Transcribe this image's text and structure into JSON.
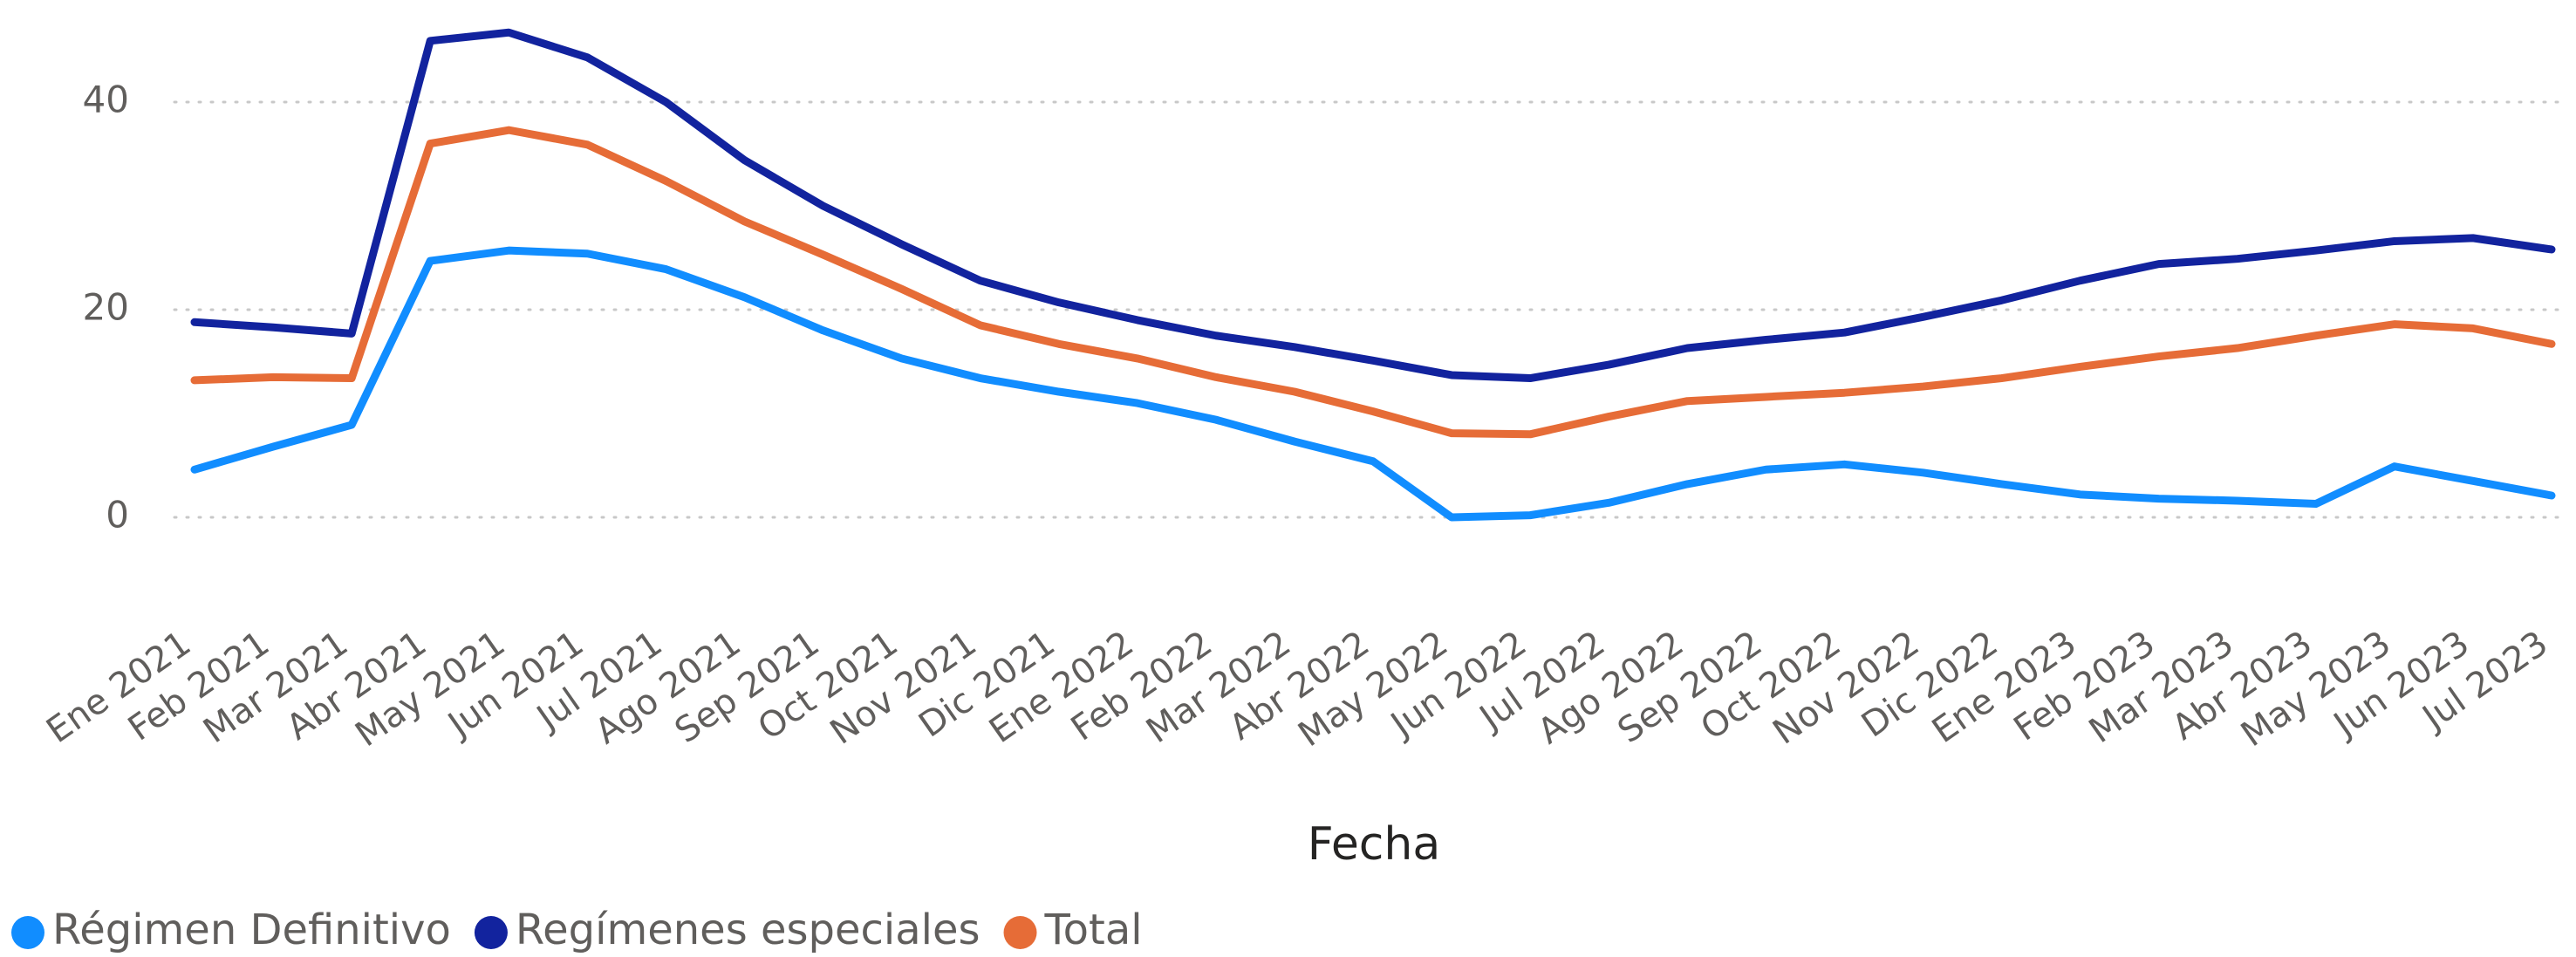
{
  "chart_data": {
    "type": "line",
    "x_label": "Fecha",
    "categories": [
      "Ene 2021",
      "Feb 2021",
      "Mar 2021",
      "Abr 2021",
      "May 2021",
      "Jun 2021",
      "Jul 2021",
      "Ago 2021",
      "Sep 2021",
      "Oct 2021",
      "Nov 2021",
      "Dic 2021",
      "Ene 2022",
      "Feb 2022",
      "Mar 2022",
      "Abr 2022",
      "May 2022",
      "Jun 2022",
      "Jul 2022",
      "Ago 2022",
      "Sep 2022",
      "Oct 2022",
      "Nov 2022",
      "Dic 2022",
      "Ene 2023",
      "Feb 2023",
      "Mar 2023",
      "Abr 2023",
      "May 2023",
      "Jun 2023",
      "Jul 2023"
    ],
    "series": [
      {
        "name": "Régimen Definitivo",
        "color": "#118DFF",
        "values": [
          4.6,
          6.8,
          8.9,
          24.7,
          25.7,
          25.4,
          23.9,
          21.2,
          18.0,
          15.3,
          13.4,
          12.1,
          11.0,
          9.4,
          7.3,
          5.4,
          0,
          0.2,
          1.4,
          3.2,
          4.6,
          5.1,
          4.3,
          3.2,
          2.2,
          1.8,
          1.6,
          1.3,
          4.9,
          3.5,
          2.1
        ]
      },
      {
        "name": "Regímenes especiales",
        "color": "#12239E",
        "values": [
          18.8,
          18.3,
          17.7,
          45.9,
          46.7,
          44.3,
          40.0,
          34.4,
          30.0,
          26.3,
          22.8,
          20.7,
          19.0,
          17.5,
          16.4,
          15.1,
          13.7,
          13.4,
          14.7,
          16.3,
          17.1,
          17.8,
          19.3,
          20.9,
          22.8,
          24.4,
          24.9,
          25.7,
          26.6,
          26.9,
          25.8
        ]
      },
      {
        "name": "Total",
        "color": "#E66C37",
        "values": [
          13.2,
          13.5,
          13.4,
          36.0,
          37.3,
          35.9,
          32.4,
          28.5,
          25.3,
          22.0,
          18.5,
          16.7,
          15.3,
          13.5,
          12.1,
          10.2,
          8.1,
          8.0,
          9.7,
          11.2,
          11.6,
          12.0,
          12.6,
          13.4,
          14.5,
          15.5,
          16.3,
          17.5,
          18.6,
          18.2,
          16.7
        ]
      }
    ],
    "ylim": [
      0,
      50
    ],
    "yticks": [
      0,
      20,
      40
    ],
    "grid": true,
    "legend": "bottom-left"
  }
}
